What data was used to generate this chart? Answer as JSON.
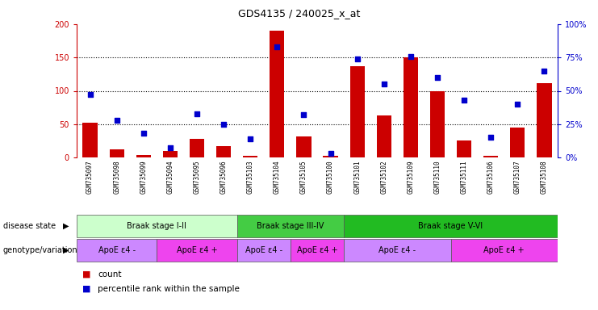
{
  "title": "GDS4135 / 240025_x_at",
  "samples": [
    "GSM735097",
    "GSM735098",
    "GSM735099",
    "GSM735094",
    "GSM735095",
    "GSM735096",
    "GSM735103",
    "GSM735104",
    "GSM735105",
    "GSM735100",
    "GSM735101",
    "GSM735102",
    "GSM735109",
    "GSM735110",
    "GSM735111",
    "GSM735106",
    "GSM735107",
    "GSM735108"
  ],
  "counts": [
    52,
    12,
    4,
    10,
    28,
    17,
    2,
    190,
    32,
    3,
    137,
    63,
    150,
    100,
    25,
    3,
    45,
    112
  ],
  "percentiles": [
    47,
    28,
    18,
    7,
    33,
    25,
    14,
    83,
    32,
    3,
    74,
    55,
    76,
    60,
    43,
    15,
    40,
    65
  ],
  "ylim_left": [
    0,
    200
  ],
  "ylim_right": [
    0,
    100
  ],
  "yticks_left": [
    0,
    50,
    100,
    150,
    200
  ],
  "ytick_labels_right": [
    "0%",
    "25%",
    "50%",
    "75%",
    "100%"
  ],
  "bar_color": "#cc0000",
  "dot_color": "#0000cc",
  "disease_state_groups": [
    {
      "label": "Braak stage I-II",
      "start": 0,
      "end": 6,
      "color": "#ccffcc"
    },
    {
      "label": "Braak stage III-IV",
      "start": 6,
      "end": 10,
      "color": "#44cc44"
    },
    {
      "label": "Braak stage V-VI",
      "start": 10,
      "end": 18,
      "color": "#22bb22"
    }
  ],
  "genotype_groups": [
    {
      "label": "ApoE ε4 -",
      "start": 0,
      "end": 3,
      "color": "#cc88ff"
    },
    {
      "label": "ApoE ε4 +",
      "start": 3,
      "end": 6,
      "color": "#ee44ee"
    },
    {
      "label": "ApoE ε4 -",
      "start": 6,
      "end": 8,
      "color": "#cc88ff"
    },
    {
      "label": "ApoE ε4 +",
      "start": 8,
      "end": 10,
      "color": "#ee44ee"
    },
    {
      "label": "ApoE ε4 -",
      "start": 10,
      "end": 14,
      "color": "#cc88ff"
    },
    {
      "label": "ApoE ε4 +",
      "start": 14,
      "end": 18,
      "color": "#ee44ee"
    }
  ],
  "disease_state_label": "disease state",
  "genotype_label": "genotype/variation",
  "legend_count_label": "count",
  "legend_percentile_label": "percentile rank within the sample",
  "background_color": "#ffffff",
  "tick_bg_color": "#cccccc",
  "left_axis_color": "#cc0000",
  "right_axis_color": "#0000cc",
  "grid_color": "#000000"
}
